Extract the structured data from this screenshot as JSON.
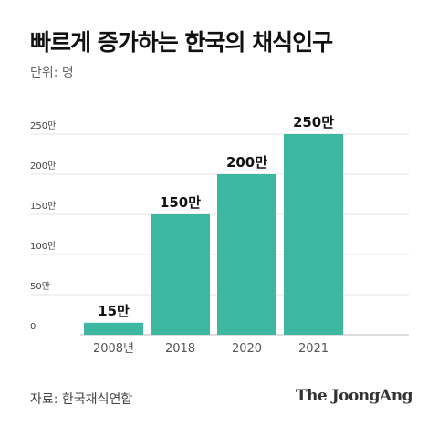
{
  "header": {
    "title": "빠르게 증가하는 한국의 채식인구",
    "unit": "단위: 명"
  },
  "footer": {
    "source": "자료: 한국채식연합",
    "brand": "The JoongAng"
  },
  "colors": {
    "bar": "#3cb8a0",
    "grid": "#e6e6e6",
    "axis": "#bbbbbb"
  },
  "chart_data": {
    "type": "bar",
    "categories": [
      "2008년",
      "2018",
      "2020",
      "2021"
    ],
    "values": [
      15,
      150,
      200,
      250
    ],
    "data_labels": [
      "15만",
      "150만",
      "200만",
      "250만"
    ],
    "y_ticks": [
      {
        "value": 0,
        "label": "0"
      },
      {
        "value": 50,
        "label": "50만"
      },
      {
        "value": 100,
        "label": "100만"
      },
      {
        "value": 150,
        "label": "150만"
      },
      {
        "value": 200,
        "label": "200만"
      },
      {
        "value": 250,
        "label": "250만"
      }
    ],
    "ylim": [
      0,
      250
    ],
    "grid": true,
    "legend": "none"
  }
}
